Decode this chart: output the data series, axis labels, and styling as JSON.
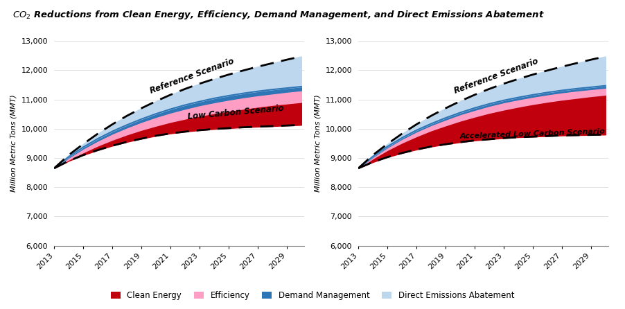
{
  "title": "$CO_2$ Reductions from Clean Energy, Efficiency, Demand Management, and Direct Emissions Abatement",
  "years": [
    2013,
    2014,
    2015,
    2016,
    2017,
    2018,
    2019,
    2020,
    2021,
    2022,
    2023,
    2024,
    2025,
    2026,
    2027,
    2028,
    2029,
    2030
  ],
  "reference": [
    8650,
    9100,
    9480,
    9830,
    10150,
    10440,
    10700,
    10940,
    11160,
    11360,
    11540,
    11700,
    11850,
    11990,
    12120,
    12240,
    12360,
    12470
  ],
  "low_carbon": [
    8650,
    8900,
    9100,
    9270,
    9420,
    9550,
    9660,
    9760,
    9840,
    9900,
    9950,
    9990,
    10020,
    10050,
    10070,
    10090,
    10110,
    10130
  ],
  "lc_clean_energy": [
    8650,
    8940,
    9190,
    9420,
    9620,
    9800,
    9960,
    10100,
    10230,
    10340,
    10440,
    10530,
    10610,
    10680,
    10750,
    10810,
    10860,
    10910
  ],
  "lc_efficiency": [
    8650,
    9010,
    9320,
    9590,
    9830,
    10040,
    10230,
    10400,
    10550,
    10680,
    10800,
    10900,
    10990,
    11070,
    11140,
    11200,
    11260,
    11310
  ],
  "lc_demand_mgmt": [
    8650,
    9040,
    9370,
    9660,
    9910,
    10130,
    10330,
    10510,
    10670,
    10810,
    10930,
    11040,
    11130,
    11210,
    11280,
    11340,
    11390,
    11440
  ],
  "accel_low_carbon": [
    8650,
    8860,
    9030,
    9170,
    9290,
    9390,
    9470,
    9540,
    9600,
    9640,
    9680,
    9710,
    9730,
    9750,
    9770,
    9780,
    9790,
    9800
  ],
  "alc_clean_energy": [
    8650,
    8980,
    9270,
    9520,
    9740,
    9940,
    10110,
    10270,
    10410,
    10540,
    10650,
    10750,
    10840,
    10920,
    10990,
    11050,
    11110,
    11160
  ],
  "alc_efficiency": [
    8650,
    9030,
    9360,
    9650,
    9900,
    10120,
    10310,
    10490,
    10640,
    10780,
    10900,
    11000,
    11090,
    11170,
    11240,
    11300,
    11350,
    11400
  ],
  "alc_demand_mgmt": [
    8650,
    9050,
    9390,
    9690,
    9950,
    10170,
    10370,
    10550,
    10710,
    10850,
    10970,
    11070,
    11160,
    11240,
    11310,
    11370,
    11420,
    11470
  ],
  "ylabel": "Million Metric Tons (MMT)",
  "ylim": [
    6000,
    13000
  ],
  "yticks": [
    6000,
    7000,
    8000,
    9000,
    10000,
    11000,
    12000,
    13000
  ],
  "xticks": [
    2013,
    2015,
    2017,
    2019,
    2021,
    2023,
    2025,
    2027,
    2029
  ],
  "color_clean_energy": "#C0000C",
  "color_efficiency": "#FF9EC4",
  "color_demand_mgmt": "#2E75B6",
  "color_direct_emiss": "#BDD7EE",
  "label1": "Reference Scenario",
  "label2": "Low Carbon Scenario",
  "label3": "Accelerated Low Carbon Scenario",
  "legend_clean_energy": "Clean Energy",
  "legend_efficiency": "Efficiency",
  "legend_demand_mgmt": "Demand Management",
  "legend_direct_emiss": "Direct Emissions Abatement"
}
